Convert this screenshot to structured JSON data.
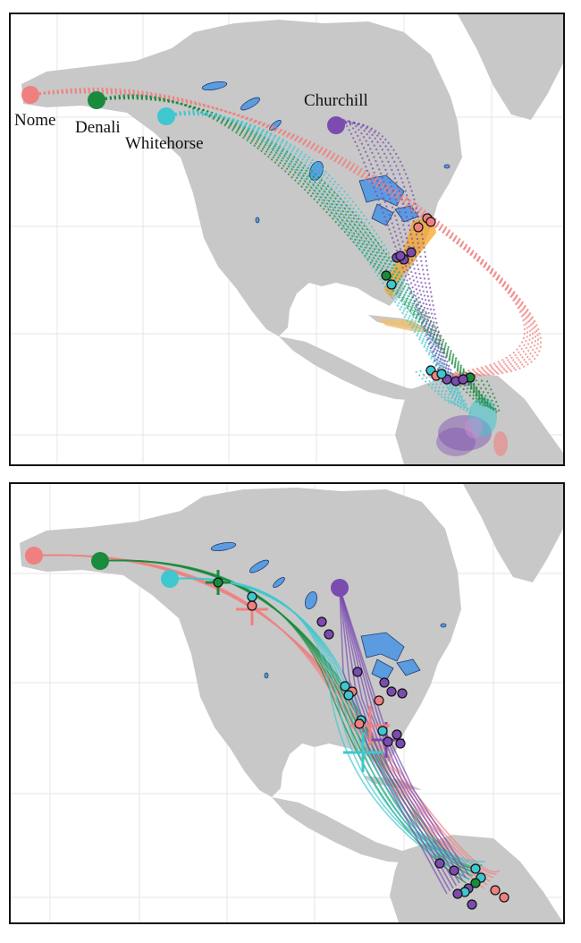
{
  "panels": [
    {
      "name": "fall-migration-predicted",
      "route_style": "dotted",
      "labels_visible": true
    },
    {
      "name": "fall-migration-tracked",
      "route_style": "solid",
      "labels_visible": false
    }
  ],
  "sites": [
    {
      "id": "nome",
      "label": "Nome",
      "color": "#f08080"
    },
    {
      "id": "denali",
      "label": "Denali",
      "color": "#1a8a3c"
    },
    {
      "id": "whitehorse",
      "label": "Whitehorse",
      "color": "#3ec7cf"
    },
    {
      "id": "churchill",
      "label": "Churchill",
      "color": "#7b4bb0"
    }
  ],
  "colors": {
    "land": "#c8c8c8",
    "water": "#ffffff",
    "lakes": "#5b9be0",
    "grid": "#e6e6e6",
    "stopover_region": "#f5a623",
    "caribbean": "#f0c070"
  },
  "map_layers": [
    "land",
    "lakes",
    "graticule",
    "migration-routes",
    "stopover-points",
    "wintering-ranges"
  ]
}
